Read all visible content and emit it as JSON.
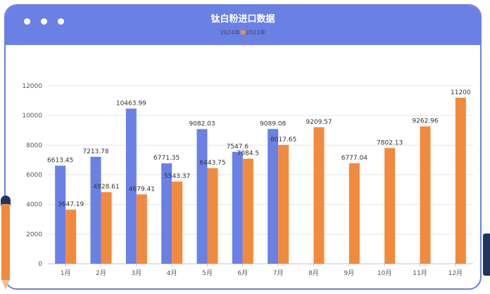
{
  "header": {
    "title": "钛白粉进口数据",
    "legend": [
      {
        "label": "2024年",
        "color": "#6b80e4"
      },
      {
        "label": "2023年",
        "color": "#f28a3d"
      }
    ]
  },
  "chart_data": {
    "type": "bar",
    "title": "钛白粉进口数据",
    "categories": [
      "1月",
      "2月",
      "3月",
      "4月",
      "5月",
      "6月",
      "7月",
      "8月",
      "9月",
      "10月",
      "11月",
      "12月"
    ],
    "series": [
      {
        "name": "2024年",
        "color": "#6b80e4",
        "values": [
          6613.45,
          7213.78,
          10463.99,
          6771.35,
          9082.03,
          7547.6,
          9089.08,
          null,
          null,
          null,
          null,
          null
        ]
      },
      {
        "name": "2023年",
        "color": "#f28a3d",
        "values": [
          3647.19,
          4828.61,
          4679.41,
          5543.37,
          6443.75,
          7084.5,
          8017.65,
          9209.57,
          6777.04,
          7802.13,
          9262.96,
          11200
        ]
      }
    ],
    "ylim": [
      0,
      12000
    ],
    "yticks": [
      0,
      2000,
      4000,
      6000,
      8000,
      10000,
      12000
    ],
    "grid": true,
    "legend_position": "top-center"
  }
}
